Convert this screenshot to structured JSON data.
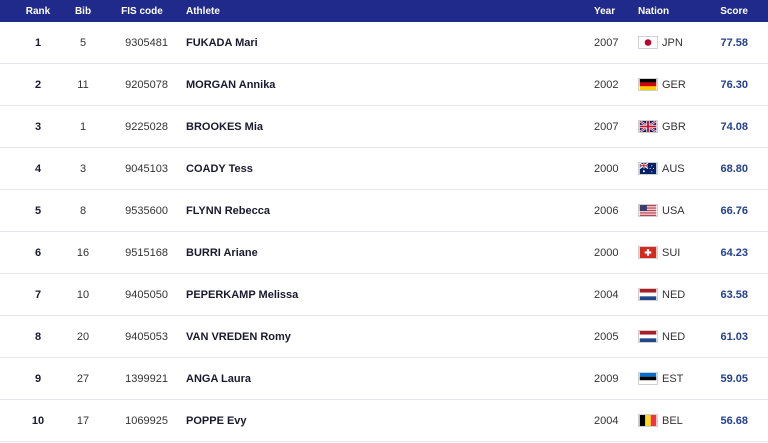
{
  "header": {
    "rank": "Rank",
    "bib": "Bib",
    "fis": "FIS code",
    "athlete": "Athlete",
    "year": "Year",
    "nation": "Nation",
    "score": "Score"
  },
  "rows": [
    {
      "rank": "1",
      "bib": "5",
      "fis": "9305481",
      "athlete": "FUKADA Mari",
      "year": "2007",
      "nation": "JPN",
      "flag": "jpn-flag-icon",
      "score": "77.58"
    },
    {
      "rank": "2",
      "bib": "11",
      "fis": "9205078",
      "athlete": "MORGAN Annika",
      "year": "2002",
      "nation": "GER",
      "flag": "ger-flag-icon",
      "score": "76.30"
    },
    {
      "rank": "3",
      "bib": "1",
      "fis": "9225028",
      "athlete": "BROOKES Mia",
      "year": "2007",
      "nation": "GBR",
      "flag": "gbr-flag-icon",
      "score": "74.08"
    },
    {
      "rank": "4",
      "bib": "3",
      "fis": "9045103",
      "athlete": "COADY Tess",
      "year": "2000",
      "nation": "AUS",
      "flag": "aus-flag-icon",
      "score": "68.80"
    },
    {
      "rank": "5",
      "bib": "8",
      "fis": "9535600",
      "athlete": "FLYNN Rebecca",
      "year": "2006",
      "nation": "USA",
      "flag": "usa-flag-icon",
      "score": "66.76"
    },
    {
      "rank": "6",
      "bib": "16",
      "fis": "9515168",
      "athlete": "BURRI Ariane",
      "year": "2000",
      "nation": "SUI",
      "flag": "sui-flag-icon",
      "score": "64.23"
    },
    {
      "rank": "7",
      "bib": "10",
      "fis": "9405050",
      "athlete": "PEPERKAMP Melissa",
      "year": "2004",
      "nation": "NED",
      "flag": "ned-flag-icon",
      "score": "63.58"
    },
    {
      "rank": "8",
      "bib": "20",
      "fis": "9405053",
      "athlete": "VAN VREDEN Romy",
      "year": "2005",
      "nation": "NED",
      "flag": "ned-flag-icon",
      "score": "61.03"
    },
    {
      "rank": "9",
      "bib": "27",
      "fis": "1399921",
      "athlete": "ANGA Laura",
      "year": "2009",
      "nation": "EST",
      "flag": "est-flag-icon",
      "score": "59.05"
    },
    {
      "rank": "10",
      "bib": "17",
      "fis": "1069925",
      "athlete": "POPPE Evy",
      "year": "2004",
      "nation": "BEL",
      "flag": "bel-flag-icon",
      "score": "56.68"
    }
  ],
  "colors": {
    "header_bg": "#1f2a8a",
    "score_text": "#24408e"
  }
}
